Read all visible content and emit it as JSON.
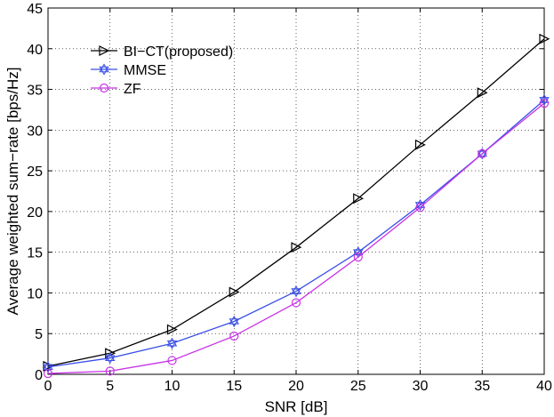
{
  "chart_data": {
    "type": "line",
    "title": "",
    "xlabel": "SNR [dB]",
    "ylabel": "Average weighted sum−rate [bps/Hz]",
    "x": [
      0,
      5,
      10,
      15,
      20,
      25,
      30,
      35,
      40
    ],
    "xlim": [
      0,
      40
    ],
    "ylim": [
      0,
      45
    ],
    "xticks": [
      0,
      5,
      10,
      15,
      20,
      25,
      30,
      35,
      40
    ],
    "yticks": [
      0,
      5,
      10,
      15,
      20,
      25,
      30,
      35,
      40,
      45
    ],
    "grid": true,
    "legend_position": "top-left",
    "series": [
      {
        "name": "BI−CT(proposed)",
        "color": "#000000",
        "marker": "triangle-right",
        "values": [
          1.0,
          2.6,
          5.5,
          10.1,
          15.6,
          21.6,
          28.2,
          34.6,
          41.2
        ]
      },
      {
        "name": "MMSE",
        "color": "#3a4fe6",
        "marker": "hexagram",
        "values": [
          0.9,
          2.0,
          3.8,
          6.5,
          10.2,
          15.0,
          20.8,
          27.1,
          33.7
        ]
      },
      {
        "name": "ZF",
        "color": "#c834e6",
        "marker": "circle",
        "values": [
          0.1,
          0.4,
          1.7,
          4.7,
          8.8,
          14.4,
          20.5,
          27.1,
          33.3
        ]
      }
    ]
  }
}
